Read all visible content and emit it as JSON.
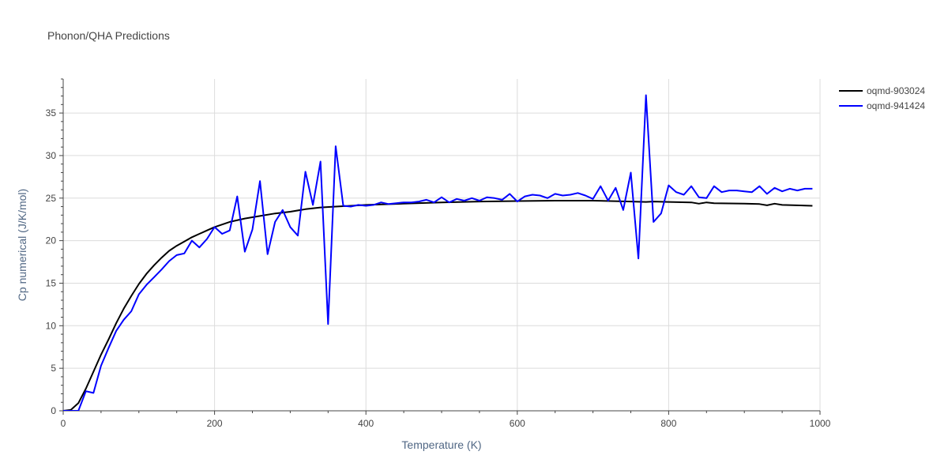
{
  "chart_data": {
    "type": "line",
    "title": "Phonon/QHA Predictions",
    "xlabel": "Temperature (K)",
    "ylabel": "Cp numerical (J/K/mol)",
    "xlim": [
      0,
      1000
    ],
    "ylim": [
      0,
      39
    ],
    "x_ticks": [
      0,
      200,
      400,
      600,
      800,
      1000
    ],
    "y_ticks": [
      0,
      5,
      10,
      15,
      20,
      25,
      30,
      35
    ],
    "grid": true,
    "legend_position": "top-right",
    "series": [
      {
        "name": "oqmd-903024",
        "color": "#000000",
        "x": [
          0,
          10,
          20,
          30,
          40,
          50,
          60,
          70,
          80,
          90,
          100,
          110,
          120,
          130,
          140,
          150,
          160,
          170,
          180,
          190,
          200,
          220,
          240,
          260,
          280,
          300,
          320,
          340,
          360,
          380,
          400,
          450,
          500,
          550,
          600,
          650,
          700,
          750,
          770,
          780,
          800,
          830,
          840,
          850,
          860,
          900,
          920,
          930,
          940,
          950,
          990
        ],
        "y": [
          0,
          0.1,
          0.9,
          2.6,
          4.6,
          6.6,
          8.4,
          10.3,
          12.0,
          13.5,
          14.9,
          16.1,
          17.1,
          18.0,
          18.8,
          19.4,
          19.9,
          20.4,
          20.8,
          21.2,
          21.6,
          22.2,
          22.6,
          22.9,
          23.2,
          23.4,
          23.7,
          23.9,
          24.0,
          24.1,
          24.2,
          24.35,
          24.5,
          24.6,
          24.65,
          24.7,
          24.7,
          24.6,
          24.55,
          24.6,
          24.55,
          24.5,
          24.35,
          24.5,
          24.4,
          24.35,
          24.3,
          24.15,
          24.35,
          24.2,
          24.1
        ]
      },
      {
        "name": "oqmd-941424",
        "color": "#0000ff",
        "x": [
          0,
          10,
          20,
          30,
          40,
          50,
          60,
          70,
          80,
          90,
          100,
          110,
          120,
          130,
          140,
          150,
          160,
          170,
          180,
          190,
          200,
          210,
          220,
          230,
          240,
          250,
          260,
          270,
          280,
          290,
          300,
          310,
          320,
          330,
          340,
          350,
          360,
          370,
          380,
          390,
          400,
          410,
          420,
          430,
          440,
          450,
          460,
          470,
          480,
          490,
          500,
          510,
          520,
          530,
          540,
          550,
          560,
          570,
          580,
          590,
          600,
          610,
          620,
          630,
          640,
          650,
          660,
          670,
          680,
          690,
          700,
          710,
          720,
          730,
          740,
          750,
          760,
          770,
          780,
          790,
          800,
          810,
          820,
          830,
          840,
          850,
          860,
          870,
          880,
          890,
          900,
          910,
          920,
          930,
          940,
          950,
          960,
          970,
          980,
          990
        ],
        "y": [
          0,
          0,
          0,
          2.3,
          2.1,
          5.3,
          7.4,
          9.4,
          10.7,
          11.7,
          13.7,
          14.8,
          15.7,
          16.6,
          17.6,
          18.3,
          18.5,
          20.0,
          19.2,
          20.2,
          21.6,
          20.8,
          21.2,
          25.2,
          18.7,
          21.3,
          27.0,
          18.4,
          22.2,
          23.6,
          21.6,
          20.6,
          28.1,
          24.2,
          29.3,
          10.2,
          31.1,
          24.1,
          24.0,
          24.2,
          24.1,
          24.2,
          24.5,
          24.3,
          24.4,
          24.5,
          24.5,
          24.6,
          24.8,
          24.5,
          25.1,
          24.5,
          24.9,
          24.7,
          25.0,
          24.7,
          25.1,
          25.0,
          24.8,
          25.5,
          24.6,
          25.2,
          25.4,
          25.3,
          25.0,
          25.5,
          25.3,
          25.4,
          25.6,
          25.3,
          24.9,
          26.4,
          24.7,
          26.2,
          23.6,
          28.0,
          17.9,
          37.1,
          22.2,
          23.2,
          26.5,
          25.7,
          25.4,
          26.4,
          25.1,
          25.0,
          26.4,
          25.7,
          25.9,
          25.9,
          25.8,
          25.7,
          26.4,
          25.5,
          26.2,
          25.8,
          26.1,
          25.9,
          26.1,
          26.1
        ]
      }
    ]
  }
}
